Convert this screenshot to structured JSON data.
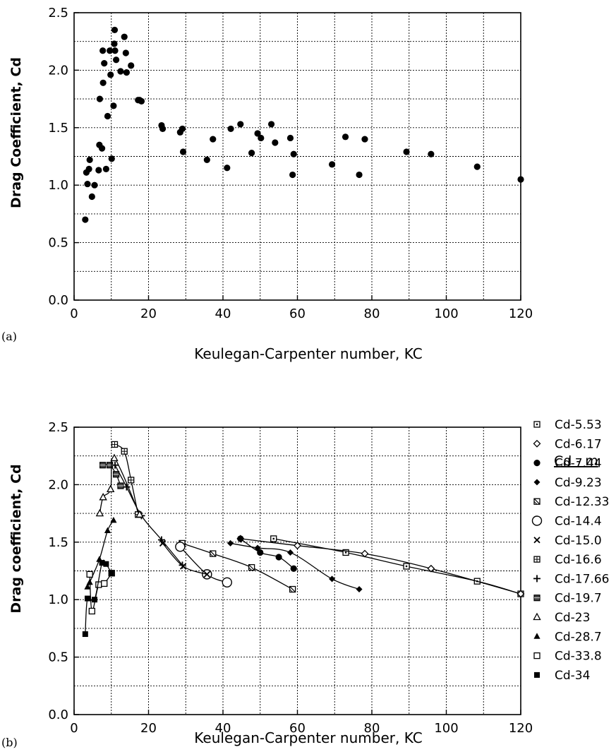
{
  "chart_data": [
    {
      "type": "scatter",
      "panel_label": "(a)",
      "xlabel": "Keulegan-Carpenter  number,  KC",
      "ylabel": "Drag Coefficient, Cd",
      "xlim": [
        0,
        120
      ],
      "ylim": [
        0,
        2.5
      ],
      "xticks": [
        "0",
        "20",
        "40",
        "60",
        "80",
        "100",
        "120"
      ],
      "yticks": [
        "0.0",
        "0.5",
        "1.0",
        "1.5",
        "2.0",
        "2.5"
      ],
      "grid": true,
      "series": [
        {
          "marker": "circle-filled",
          "points": [
            [
              3,
              0.7
            ],
            [
              3.3,
              1.11
            ],
            [
              3.6,
              1.01
            ],
            [
              4,
              1.14
            ],
            [
              4.2,
              1.22
            ],
            [
              4.8,
              0.9
            ],
            [
              5.5,
              1.0
            ],
            [
              6.6,
              1.13
            ],
            [
              6.8,
              1.35
            ],
            [
              6.9,
              1.75
            ],
            [
              7.5,
              1.32
            ],
            [
              7.7,
              2.17
            ],
            [
              7.8,
              1.89
            ],
            [
              8.1,
              2.06
            ],
            [
              8.6,
              1.14
            ],
            [
              9,
              1.6
            ],
            [
              9.6,
              2.17
            ],
            [
              9.8,
              1.96
            ],
            [
              10.1,
              1.23
            ],
            [
              10.6,
              1.69
            ],
            [
              10.8,
              2.23
            ],
            [
              10.9,
              2.35
            ],
            [
              11,
              2.17
            ],
            [
              11.3,
              2.09
            ],
            [
              12.5,
              1.99
            ],
            [
              13.5,
              2.29
            ],
            [
              13.9,
              2.15
            ],
            [
              14.1,
              1.98
            ],
            [
              15.3,
              2.04
            ],
            [
              17.2,
              1.74
            ],
            [
              17.6,
              1.74
            ],
            [
              18.1,
              1.73
            ],
            [
              23.5,
              1.52
            ],
            [
              23.8,
              1.49
            ],
            [
              28.5,
              1.46
            ],
            [
              29.1,
              1.49
            ],
            [
              29.3,
              1.29
            ],
            [
              35.7,
              1.22
            ],
            [
              37.3,
              1.4
            ],
            [
              41.1,
              1.15
            ],
            [
              42.1,
              1.49
            ],
            [
              44.7,
              1.53
            ],
            [
              47.7,
              1.28
            ],
            [
              49.3,
              1.45
            ],
            [
              50.2,
              1.41
            ],
            [
              53,
              1.53
            ],
            [
              54,
              1.37
            ],
            [
              58.1,
              1.41
            ],
            [
              58.7,
              1.09
            ],
            [
              59,
              1.27
            ],
            [
              69.3,
              1.18
            ],
            [
              72.9,
              1.42
            ],
            [
              76.6,
              1.09
            ],
            [
              78.1,
              1.4
            ],
            [
              89.3,
              1.29
            ],
            [
              95.9,
              1.27
            ],
            [
              108.3,
              1.16
            ],
            [
              120,
              1.05
            ]
          ]
        }
      ]
    },
    {
      "type": "line",
      "panel_label": "(b)",
      "xlabel": "Keulegan-Carpenter  number,  KC",
      "ylabel": "Drag coefficient, Cd",
      "xlim": [
        0,
        120
      ],
      "ylim": [
        0,
        2.5
      ],
      "xticks": [
        "0",
        "20",
        "40",
        "60",
        "80",
        "100",
        "120"
      ],
      "yticks": [
        "0.0",
        "0.5",
        "1.0",
        "1.5",
        "2.0",
        "2.5"
      ],
      "grid": true,
      "legend_title": "Cd - m",
      "legend_position": "right",
      "series": [
        {
          "name": "Cd-5.53",
          "marker": "square-dot",
          "points": [
            [
              53.6,
              1.53
            ],
            [
              73,
              1.41
            ],
            [
              89.3,
              1.29
            ],
            [
              108.3,
              1.16
            ],
            [
              120,
              1.05
            ]
          ]
        },
        {
          "name": "Cd-6.17",
          "marker": "diamond-open",
          "points": [
            [
              44.7,
              1.53
            ],
            [
              60,
              1.47
            ],
            [
              78.1,
              1.4
            ],
            [
              95.9,
              1.27
            ],
            [
              120,
              1.05
            ]
          ]
        },
        {
          "name": "Cd-7.44",
          "marker": "circle-filled",
          "points": [
            [
              44.7,
              1.53
            ],
            [
              50,
              1.41
            ],
            [
              55,
              1.37
            ],
            [
              59,
              1.27
            ]
          ]
        },
        {
          "name": "Cd-9.23",
          "marker": "diamond-filled",
          "points": [
            [
              42,
              1.49
            ],
            [
              49.3,
              1.45
            ],
            [
              58.1,
              1.41
            ],
            [
              69.3,
              1.18
            ],
            [
              76.6,
              1.09
            ]
          ]
        },
        {
          "name": "Cd-12.33",
          "marker": "square-hatched",
          "points": [
            [
              29,
              1.49
            ],
            [
              37.3,
              1.4
            ],
            [
              47.7,
              1.28
            ],
            [
              58.7,
              1.09
            ]
          ]
        },
        {
          "name": "Cd-14.4",
          "marker": "circle-open",
          "points": [
            [
              28.5,
              1.46
            ],
            [
              35.7,
              1.22
            ],
            [
              41.1,
              1.15
            ]
          ]
        },
        {
          "name": "Cd-15.0",
          "marker": "x",
          "points": [
            [
              23.8,
              1.49
            ],
            [
              29.3,
              1.29
            ],
            [
              35.7,
              1.22
            ]
          ]
        },
        {
          "name": "Cd-16.6",
          "marker": "square-grid",
          "points": [
            [
              10.9,
              2.35
            ],
            [
              13.5,
              2.29
            ],
            [
              15.3,
              2.04
            ],
            [
              17.2,
              1.74
            ]
          ]
        },
        {
          "name": "Cd-17.66",
          "marker": "plus",
          "points": [
            [
              11,
              2.17
            ],
            [
              14.1,
              1.98
            ],
            [
              18.1,
              1.73
            ],
            [
              23.5,
              1.52
            ],
            [
              29.1,
              1.3
            ]
          ]
        },
        {
          "name": "Cd-19.7",
          "marker": "square-filled-hatched",
          "points": [
            [
              7.7,
              2.17
            ],
            [
              9.6,
              2.17
            ],
            [
              11.3,
              2.09
            ],
            [
              12.5,
              1.99
            ]
          ]
        },
        {
          "name": "Cd-23",
          "marker": "triangle-open",
          "points": [
            [
              6.9,
              1.75
            ],
            [
              7.8,
              1.89
            ],
            [
              9.8,
              1.96
            ],
            [
              10.8,
              2.23
            ],
            [
              17.6,
              1.74
            ]
          ]
        },
        {
          "name": "Cd-28.7",
          "marker": "triangle-filled",
          "points": [
            [
              3.6,
              1.11
            ],
            [
              4.2,
              1.15
            ],
            [
              6.8,
              1.35
            ],
            [
              9,
              1.6
            ],
            [
              10.6,
              1.69
            ]
          ]
        },
        {
          "name": "Cd-33.8",
          "marker": "square-open",
          "points": [
            [
              4.2,
              1.22
            ],
            [
              4.8,
              0.9
            ],
            [
              6.6,
              1.13
            ],
            [
              8.1,
              1.14
            ],
            [
              10.1,
              1.23
            ]
          ]
        },
        {
          "name": "Cd-34",
          "marker": "square-filled",
          "points": [
            [
              3,
              0.7
            ],
            [
              3.6,
              1.01
            ],
            [
              5.5,
              1.0
            ],
            [
              7.5,
              1.32
            ],
            [
              8.6,
              1.31
            ],
            [
              10,
              1.23
            ]
          ]
        }
      ]
    }
  ]
}
